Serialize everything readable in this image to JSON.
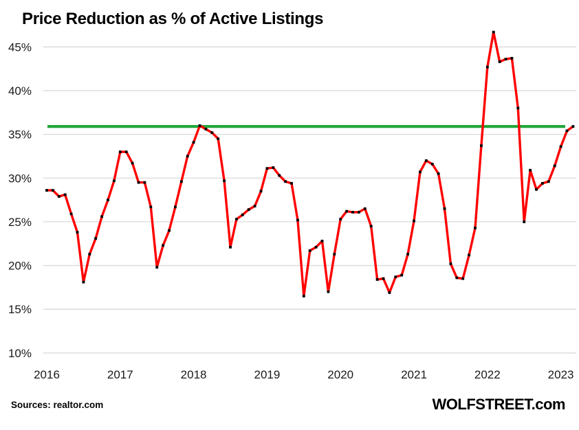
{
  "title": "Price Reduction as % of Active Listings",
  "footer": {
    "source": "Sources: realtor.com",
    "brand": "WOLFSTREET.com"
  },
  "colors": {
    "line": "#FF0000",
    "marker": "#000000",
    "reference_line": "#21A73C",
    "gridline": "#D9D9D9",
    "text": "#000000"
  },
  "chart_data": {
    "type": "line",
    "title": "Price Reduction as % of Active Listings",
    "xlabel": "",
    "ylabel": "",
    "unit": "%",
    "grid": "horizontal",
    "legend": "none",
    "x_tick_labels": [
      "2016",
      "2017",
      "2018",
      "2019",
      "2020",
      "2021",
      "2022",
      "2023"
    ],
    "y_ticks": [
      45,
      40,
      35,
      30,
      25,
      20,
      15,
      10
    ],
    "y_tick_labels": [
      "45%",
      "40%",
      "35%",
      "30%",
      "25%",
      "20%",
      "15%",
      "10%"
    ],
    "y_axis_range": [
      10,
      45
    ],
    "reference_line": {
      "value": 35.9,
      "color": "#21A73C"
    },
    "start_month": "2016-01",
    "end_month": "2023-03",
    "series": [
      {
        "name": "Price reductions as % of active listings",
        "color": "#FF0000",
        "marker": "square",
        "marker_color": "#000000",
        "values_by_year": {
          "2016": [
            28.6,
            28.6,
            27.9,
            28.1,
            25.9,
            23.8,
            18.1,
            21.3,
            23.1,
            25.6,
            27.5,
            29.7
          ],
          "2017": [
            33.0,
            33.0,
            31.7,
            29.5,
            29.5,
            26.7,
            19.8,
            22.3,
            24.0,
            26.7,
            29.6,
            32.5
          ],
          "2018": [
            34.1,
            36.0,
            35.6,
            35.2,
            34.5,
            29.7,
            22.1,
            25.3,
            25.8,
            26.4,
            26.8,
            28.5
          ],
          "2019": [
            31.1,
            31.2,
            30.3,
            29.6,
            29.4,
            25.2,
            16.5,
            21.7,
            22.1,
            22.8,
            17.0,
            21.3
          ],
          "2020": [
            25.3,
            26.2,
            26.1,
            26.1,
            26.5,
            24.5,
            18.4,
            18.5,
            16.9,
            18.7,
            18.9,
            21.3
          ],
          "2021": [
            25.1,
            30.7,
            32.0,
            31.6,
            30.5,
            26.5,
            20.2,
            18.6,
            18.5,
            21.2,
            24.3,
            33.7
          ],
          "2022": [
            42.7,
            46.7,
            43.3,
            43.6,
            43.7,
            38.0,
            25.0,
            30.9,
            28.7,
            29.4,
            29.6,
            31.4
          ],
          "2023": [
            33.6,
            35.4,
            35.9
          ]
        }
      }
    ]
  }
}
